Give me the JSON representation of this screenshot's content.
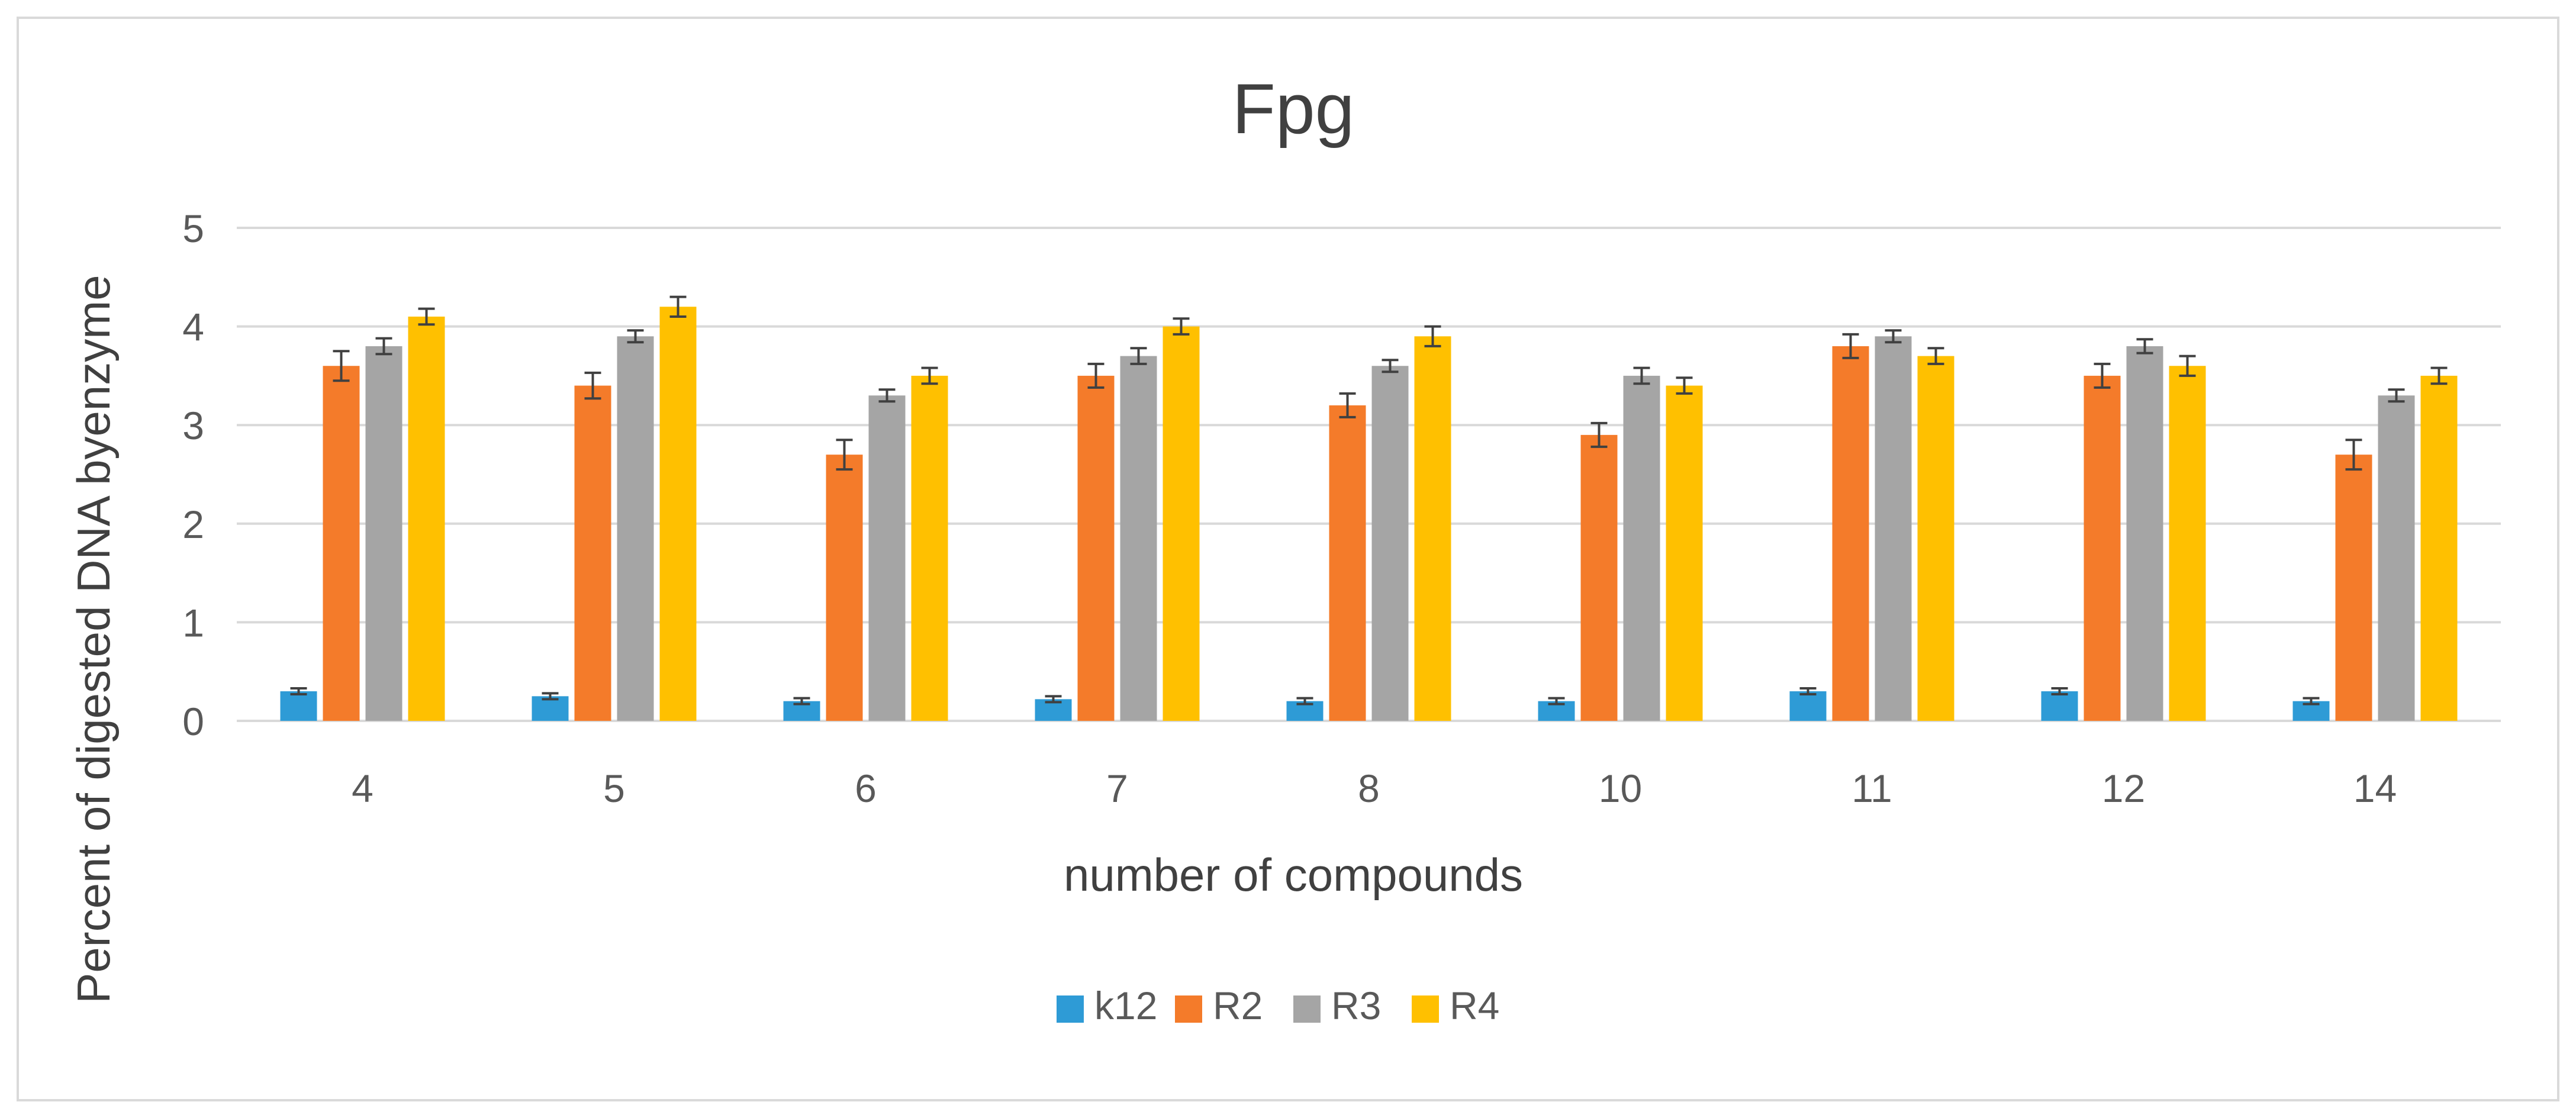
{
  "chart_data": {
    "type": "bar",
    "title": "Fpg",
    "xlabel": "number of compounds",
    "ylabel": "Percent of digested DNA byenzyme",
    "categories": [
      "4",
      "5",
      "6",
      "7",
      "8",
      "10",
      "11",
      "12",
      "14"
    ],
    "series": [
      {
        "name": "k12",
        "color": "#2e9bd6",
        "values": [
          0.3,
          0.25,
          0.2,
          0.22,
          0.2,
          0.2,
          0.3,
          0.3,
          0.2
        ],
        "errors": [
          0.03,
          0.03,
          0.03,
          0.03,
          0.03,
          0.03,
          0.03,
          0.03,
          0.03
        ]
      },
      {
        "name": "R2",
        "color": "#f47b2a",
        "values": [
          3.6,
          3.4,
          2.7,
          3.5,
          3.2,
          2.9,
          3.8,
          3.5,
          2.7
        ],
        "errors": [
          0.15,
          0.13,
          0.15,
          0.12,
          0.12,
          0.12,
          0.12,
          0.12,
          0.15
        ]
      },
      {
        "name": "R3",
        "color": "#a5a5a5",
        "values": [
          3.8,
          3.9,
          3.3,
          3.7,
          3.6,
          3.5,
          3.9,
          3.8,
          3.3
        ],
        "errors": [
          0.08,
          0.06,
          0.06,
          0.08,
          0.06,
          0.08,
          0.06,
          0.07,
          0.06
        ]
      },
      {
        "name": "R4",
        "color": "#ffc000",
        "values": [
          4.1,
          4.2,
          3.5,
          4.0,
          3.9,
          3.4,
          3.7,
          3.6,
          3.5
        ],
        "errors": [
          0.08,
          0.1,
          0.08,
          0.08,
          0.1,
          0.08,
          0.08,
          0.1,
          0.08
        ]
      }
    ],
    "ylim": [
      0,
      5
    ],
    "yticks": [
      0,
      1,
      2,
      3,
      4,
      5
    ],
    "grid": true,
    "legend_position": "bottom",
    "error_bars": true
  },
  "colors": {
    "grid": "#d9d9d9",
    "axis_text": "#595959",
    "title_text": "#404040",
    "frame": "#d9d9d9",
    "error_bar": "#404040"
  }
}
